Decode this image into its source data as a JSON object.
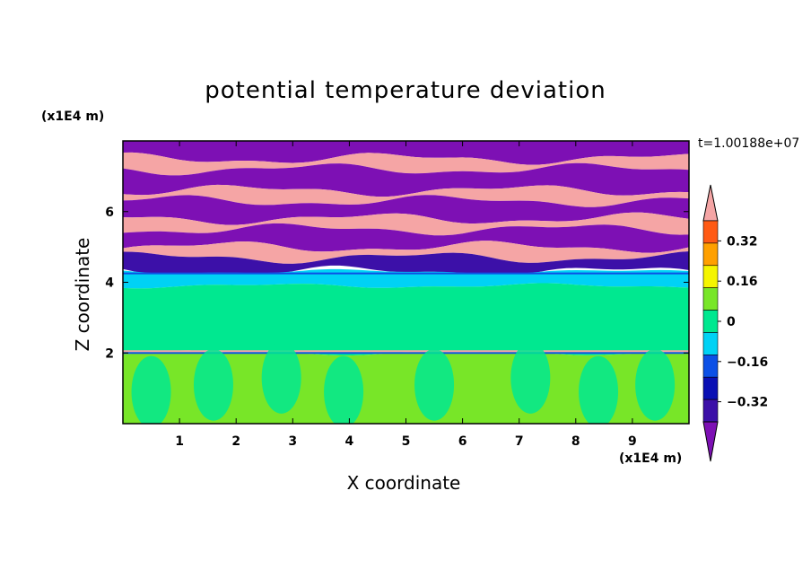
{
  "chart_data": {
    "type": "heatmap",
    "title": "potential temperature deviation",
    "xlabel": "X coordinate",
    "ylabel": "Z coordinate",
    "x_unit": "(x1E4 m)",
    "y_unit": "(x1E4 m)",
    "timestamp": "t=1.00188e+07",
    "xlim": [
      0,
      10
    ],
    "ylim": [
      0,
      8
    ],
    "x_ticks": [
      "1",
      "2",
      "3",
      "4",
      "5",
      "6",
      "7",
      "8",
      "9"
    ],
    "y_ticks": [
      "2",
      "4",
      "6"
    ],
    "colorbar": {
      "levels": [
        -0.4,
        -0.32,
        -0.24,
        -0.16,
        -0.08,
        0,
        0.08,
        0.16,
        0.24,
        0.32,
        0.4
      ],
      "tick_labels": [
        "0.32",
        "0.16",
        "0",
        "−0.16",
        "−0.32"
      ],
      "colors": [
        "#7d10b4",
        "#3c10a8",
        "#0a10b4",
        "#0c50e6",
        "#00d2f5",
        "#00e890",
        "#78e628",
        "#f5f500",
        "#ffa000",
        "#ff5a14",
        "#f5a5a5"
      ],
      "extend": "both"
    },
    "layers": [
      {
        "z_range": [
          7.5,
          8.0
        ],
        "dominant": "#7d10b4"
      },
      {
        "z_range": [
          7.2,
          7.5
        ],
        "dominant": "#f5a5a5"
      },
      {
        "z_range": [
          6.6,
          7.2
        ],
        "dominant": "#7d10b4"
      },
      {
        "z_range": [
          6.3,
          6.6
        ],
        "dominant": "#f5a5a5"
      },
      {
        "z_range": [
          5.8,
          6.3
        ],
        "dominant": "#7d10b4"
      },
      {
        "z_range": [
          5.5,
          5.8
        ],
        "dominant": "#f5a5a5"
      },
      {
        "z_range": [
          5.0,
          5.5
        ],
        "dominant": "#7d10b4"
      },
      {
        "z_range": [
          4.7,
          5.0
        ],
        "dominant": "#f5a5a5"
      },
      {
        "z_range": [
          4.3,
          4.7
        ],
        "dominant": "#3c10a8"
      },
      {
        "z_range": [
          3.9,
          4.3
        ],
        "dominant": "#00d2f5"
      },
      {
        "z_range": [
          2.0,
          3.9
        ],
        "dominant": "#00e890"
      },
      {
        "z_range": [
          0.0,
          2.0
        ],
        "dominant": "#78e628"
      }
    ]
  }
}
